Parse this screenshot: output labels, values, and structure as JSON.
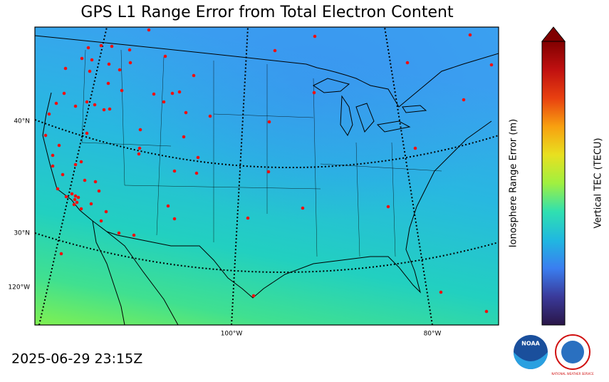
{
  "title": "GPS L1 Range Error from Total Electron Content",
  "timestamp": "2025-06-29 23:15Z",
  "map": {
    "graticule_labels": [
      "40°N",
      "30°N",
      "120°W",
      "100°W",
      "80°W"
    ]
  },
  "colorbar": {
    "left_label": "Ionosphere Range Error (m)",
    "right_label": "Vertical TEC (TECU)",
    "range_lim": [
      0,
      16.05
    ],
    "range_ticks": [
      0,
      5,
      10,
      15
    ],
    "tec_lim": [
      0,
      100
    ],
    "tec_ticks": [
      0,
      10,
      20,
      30,
      40,
      50,
      60,
      70,
      80,
      90,
      100
    ]
  },
  "logos": {
    "noaa": "NOAA",
    "nws": "NATIONAL WEATHER SERVICE"
  }
}
